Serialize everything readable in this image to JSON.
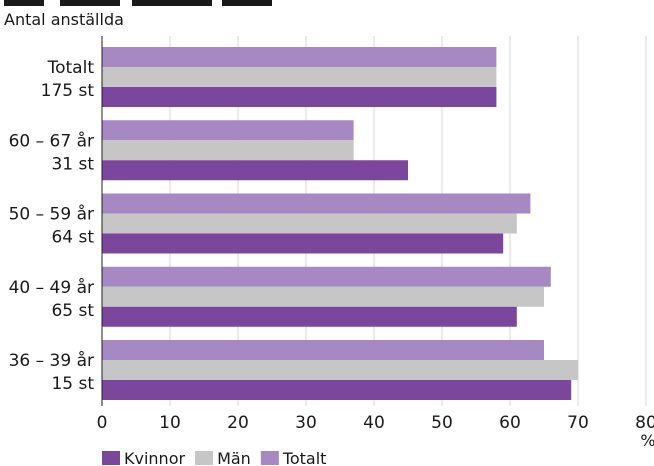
{
  "chart_data": {
    "type": "bar",
    "orientation": "horizontal",
    "title": "",
    "subtitle": "Antal anställda",
    "xlabel": "%",
    "ylabel": "",
    "xlim": [
      0,
      80
    ],
    "x_ticks": [
      "0",
      "10",
      "20",
      "30",
      "40",
      "50",
      "60",
      "70",
      "80"
    ],
    "grid": true,
    "legend_position": "bottom-left",
    "categories": [
      {
        "label": "Totalt",
        "count": "175 st"
      },
      {
        "label": "60 – 67 år",
        "count": "31 st"
      },
      {
        "label": "50 – 59 år",
        "count": "64 st"
      },
      {
        "label": "40 – 49 år",
        "count": "65 st"
      },
      {
        "label": "36 – 39 år",
        "count": "15 st"
      }
    ],
    "series": [
      {
        "name": "Totalt",
        "color": "#a689c2",
        "values": [
          58,
          37,
          63,
          66,
          65
        ]
      },
      {
        "name": "Män",
        "color": "#c6c6c6",
        "values": [
          58,
          37,
          61,
          65,
          70
        ]
      },
      {
        "name": "Kvinnor",
        "color": "#7b479d",
        "values": [
          58,
          45,
          59,
          61,
          69
        ]
      }
    ],
    "legend": [
      {
        "name": "Kvinnor",
        "color": "#7b479d"
      },
      {
        "name": "Män",
        "color": "#c6c6c6"
      },
      {
        "name": "Totalt",
        "color": "#a689c2"
      }
    ]
  }
}
